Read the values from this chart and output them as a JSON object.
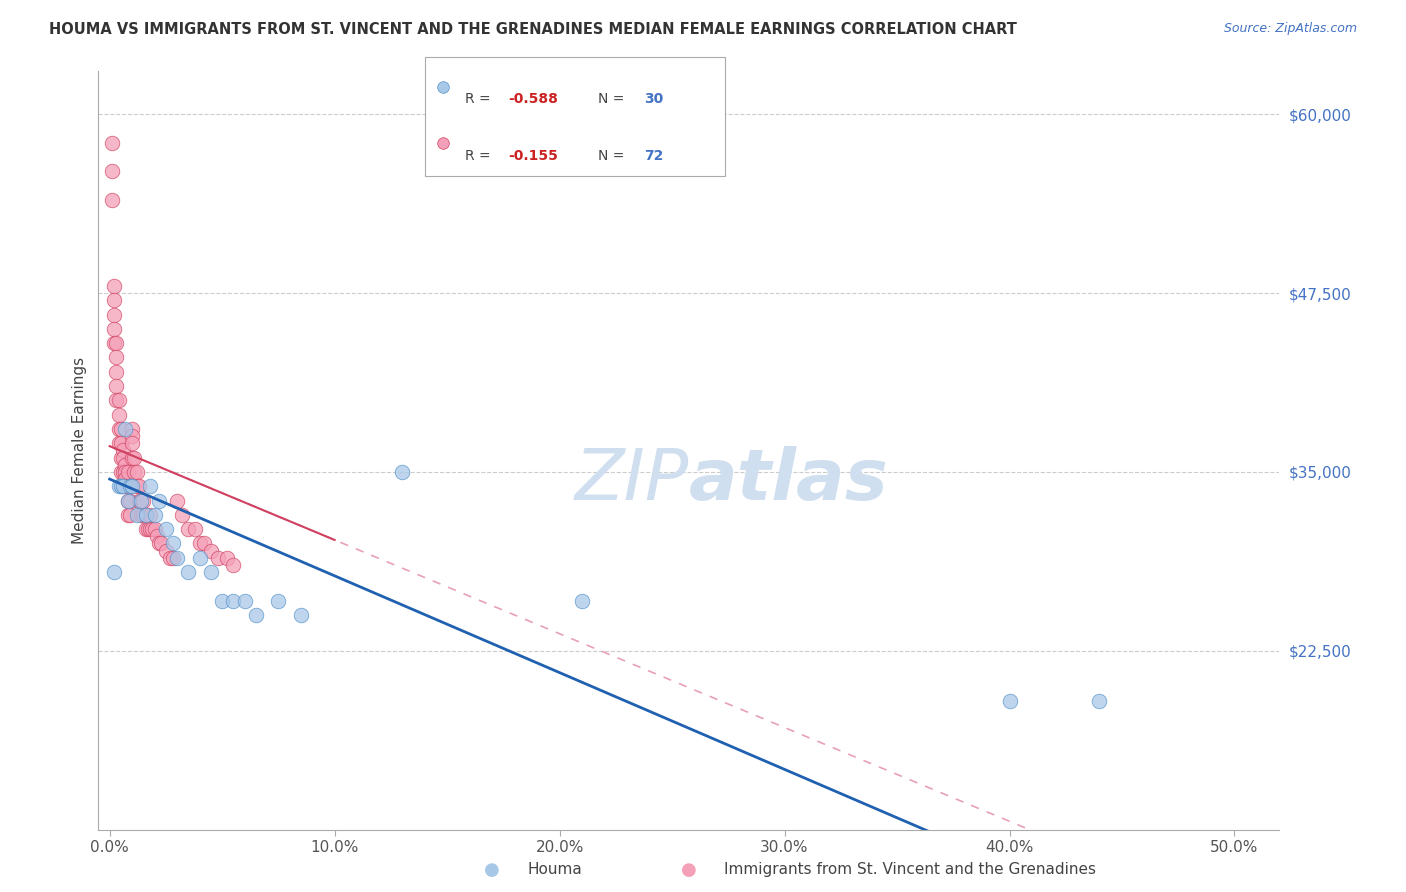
{
  "title": "HOUMA VS IMMIGRANTS FROM ST. VINCENT AND THE GRENADINES MEDIAN FEMALE EARNINGS CORRELATION CHART",
  "source": "Source: ZipAtlas.com",
  "ylabel": "Median Female Earnings",
  "xlabel_ticks": [
    "0.0%",
    "10.0%",
    "20.0%",
    "30.0%",
    "40.0%",
    "50.0%"
  ],
  "xlabel_vals": [
    0.0,
    0.1,
    0.2,
    0.3,
    0.4,
    0.5
  ],
  "ytick_labels": [
    "$60,000",
    "$47,500",
    "$35,000",
    "$22,500"
  ],
  "ytick_vals": [
    60000,
    47500,
    35000,
    22500
  ],
  "ylim": [
    10000,
    63000
  ],
  "xlim": [
    -0.005,
    0.52
  ],
  "houma_R": -0.588,
  "houma_N": 30,
  "svg_R": -0.155,
  "svg_N": 72,
  "houma_color": "#a8c8e8",
  "svg_color": "#f4a0b8",
  "houma_edge_color": "#5090c8",
  "svg_edge_color": "#d04060",
  "houma_line_color": "#2060b0",
  "svg_line_color": "#d04060",
  "svg_line_dashed_color": "#e8a0b8",
  "watermark_color": "#d0dff0",
  "houma_x": [
    0.002,
    0.004,
    0.005,
    0.006,
    0.007,
    0.008,
    0.009,
    0.01,
    0.012,
    0.014,
    0.016,
    0.018,
    0.02,
    0.022,
    0.025,
    0.028,
    0.03,
    0.035,
    0.04,
    0.045,
    0.05,
    0.055,
    0.06,
    0.065,
    0.075,
    0.085,
    0.13,
    0.21,
    0.4,
    0.44
  ],
  "houma_y": [
    28000,
    34000,
    34000,
    34000,
    38000,
    33000,
    34000,
    34000,
    32000,
    33000,
    32000,
    34000,
    32000,
    33000,
    31000,
    30000,
    29000,
    28000,
    29000,
    28000,
    26000,
    26000,
    26000,
    25000,
    26000,
    25000,
    35000,
    26000,
    19000,
    19000
  ],
  "svg_x": [
    0.001,
    0.001,
    0.001,
    0.002,
    0.002,
    0.002,
    0.002,
    0.002,
    0.003,
    0.003,
    0.003,
    0.003,
    0.003,
    0.004,
    0.004,
    0.004,
    0.004,
    0.005,
    0.005,
    0.005,
    0.005,
    0.006,
    0.006,
    0.006,
    0.006,
    0.007,
    0.007,
    0.007,
    0.008,
    0.008,
    0.008,
    0.008,
    0.009,
    0.009,
    0.009,
    0.01,
    0.01,
    0.01,
    0.01,
    0.011,
    0.011,
    0.012,
    0.012,
    0.013,
    0.013,
    0.014,
    0.014,
    0.015,
    0.015,
    0.016,
    0.016,
    0.017,
    0.018,
    0.018,
    0.019,
    0.02,
    0.021,
    0.022,
    0.023,
    0.025,
    0.027,
    0.028,
    0.03,
    0.032,
    0.035,
    0.038,
    0.04,
    0.042,
    0.045,
    0.048,
    0.052,
    0.055
  ],
  "svg_y": [
    58000,
    56000,
    54000,
    48000,
    47000,
    46000,
    45000,
    44000,
    44000,
    43000,
    42000,
    41000,
    40000,
    40000,
    39000,
    38000,
    37000,
    38000,
    37000,
    36000,
    35000,
    36500,
    36000,
    35000,
    34000,
    35500,
    35000,
    34500,
    35000,
    34000,
    33000,
    32000,
    34000,
    33000,
    32000,
    38000,
    37500,
    37000,
    36000,
    36000,
    35000,
    35000,
    34000,
    34000,
    33000,
    33000,
    32000,
    33000,
    32000,
    32000,
    31000,
    31000,
    32000,
    31000,
    31000,
    31000,
    30500,
    30000,
    30000,
    29500,
    29000,
    29000,
    33000,
    32000,
    31000,
    31000,
    30000,
    30000,
    29500,
    29000,
    29000,
    28500
  ]
}
